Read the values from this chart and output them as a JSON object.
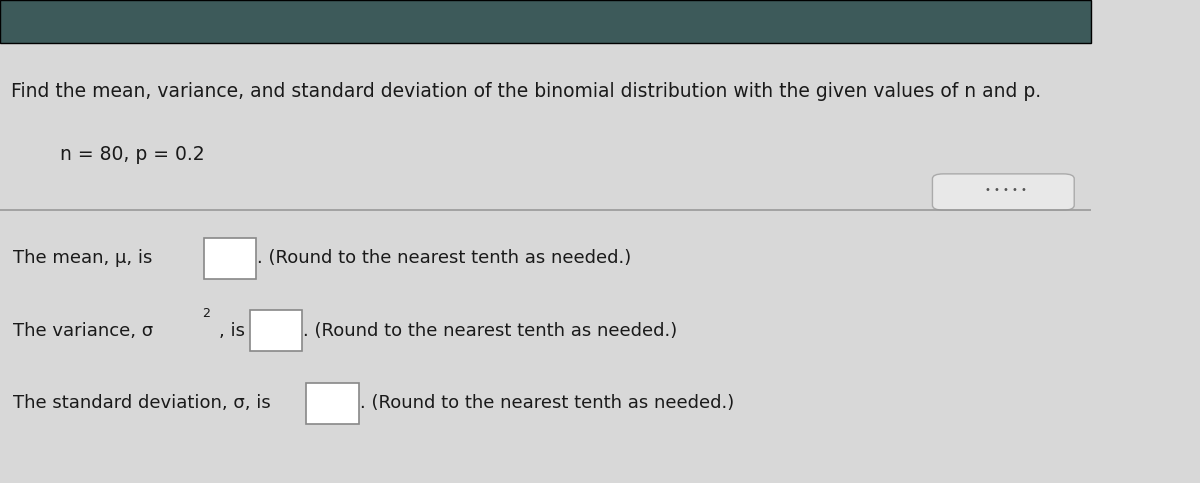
{
  "title_text": "Find the mean, variance, and standard deviation of the binomial distribution with the given values of n and p.",
  "subtitle_text": "n = 80, p = 0.2",
  "line1": "The mean, μ, is",
  "line2_part1": "The variance, σ",
  "line2_sup": "2",
  "line2_part2": ", is",
  "line3": "The standard deviation, σ, is",
  "round_text": "(Round to the nearest tenth as needed.)",
  "bg_color_top": "#4a4a6a",
  "bg_color_main": "#d8d8d8",
  "text_color": "#1a1a1a",
  "box_color": "#ffffff",
  "box_edge_color": "#888888",
  "divider_color": "#999999",
  "dots_color": "#555555",
  "title_fontsize": 13.5,
  "body_fontsize": 13.0,
  "subtitle_fontsize": 13.5
}
